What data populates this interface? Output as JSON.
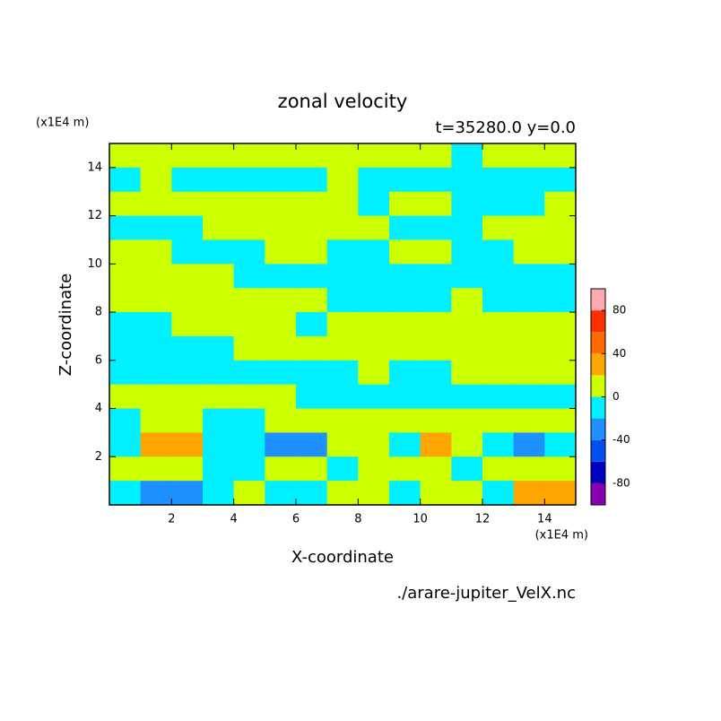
{
  "chart_data": {
    "type": "contour",
    "title": "zonal velocity",
    "subtitle": "t=35280.0 y=0.0",
    "xlabel": "X-coordinate",
    "ylabel": "Z-coordinate",
    "x_unit": "(x1E4 m)",
    "y_unit": "(x1E4 m)",
    "source": "./arare-jupiter_VelX.nc",
    "xlim": [
      0,
      15
    ],
    "ylim": [
      0,
      15
    ],
    "xticks": [
      2,
      4,
      6,
      8,
      10,
      12,
      14
    ],
    "yticks": [
      2,
      4,
      6,
      8,
      10,
      12,
      14
    ],
    "x": [
      0.5,
      1.5,
      2.5,
      3.5,
      4.5,
      5.5,
      6.5,
      7.5,
      8.5,
      9.5,
      10.5,
      11.5,
      12.5,
      13.5,
      14.5
    ],
    "y": [
      14.5,
      13.5,
      12.5,
      11.5,
      10.5,
      9.5,
      8.5,
      7.5,
      6.5,
      5.5,
      4.5,
      3.5,
      2.5,
      1.5,
      0.5
    ],
    "z": [
      [
        10,
        10,
        10,
        10,
        10,
        10,
        10,
        10,
        10,
        10,
        10,
        -10,
        10,
        10,
        10
      ],
      [
        -10,
        10,
        -10,
        -10,
        -10,
        -10,
        -10,
        10,
        -10,
        -10,
        -10,
        -10,
        -10,
        -10,
        -10
      ],
      [
        10,
        10,
        10,
        10,
        10,
        10,
        10,
        10,
        -10,
        10,
        10,
        -10,
        -10,
        -10,
        10
      ],
      [
        -10,
        -10,
        -10,
        10,
        10,
        10,
        10,
        10,
        10,
        -10,
        -10,
        -10,
        10,
        10,
        10
      ],
      [
        10,
        10,
        -10,
        -10,
        -10,
        10,
        10,
        -10,
        -10,
        10,
        10,
        -10,
        -10,
        10,
        10
      ],
      [
        10,
        10,
        10,
        10,
        -10,
        -10,
        -10,
        -10,
        -10,
        -10,
        -10,
        -10,
        -10,
        -10,
        -10
      ],
      [
        10,
        10,
        10,
        10,
        10,
        10,
        10,
        -10,
        -10,
        -10,
        -10,
        10,
        -10,
        -10,
        -10
      ],
      [
        -10,
        -10,
        10,
        10,
        10,
        10,
        -10,
        10,
        10,
        10,
        10,
        10,
        10,
        10,
        10
      ],
      [
        -10,
        -10,
        -10,
        -10,
        10,
        10,
        10,
        10,
        10,
        10,
        10,
        10,
        10,
        10,
        10
      ],
      [
        -10,
        -10,
        -10,
        -10,
        -10,
        -10,
        -10,
        -10,
        10,
        -10,
        -10,
        10,
        10,
        10,
        10
      ],
      [
        10,
        10,
        10,
        10,
        10,
        10,
        -10,
        -10,
        -10,
        -10,
        -10,
        -10,
        -10,
        -10,
        -10
      ],
      [
        -10,
        10,
        10,
        -10,
        -10,
        10,
        10,
        10,
        10,
        10,
        10,
        10,
        10,
        10,
        10
      ],
      [
        -10,
        30,
        30,
        -10,
        -10,
        -30,
        -30,
        10,
        10,
        -10,
        30,
        10,
        -10,
        -30,
        -10
      ],
      [
        10,
        10,
        10,
        -10,
        -10,
        10,
        10,
        -10,
        10,
        10,
        10,
        -10,
        10,
        10,
        10
      ],
      [
        -10,
        -30,
        -30,
        -10,
        10,
        -10,
        -10,
        10,
        10,
        -10,
        10,
        10,
        -10,
        30,
        30
      ]
    ],
    "levels": [
      -100,
      -80,
      -60,
      -40,
      -20,
      0,
      20,
      40,
      60,
      80,
      100
    ],
    "colors": [
      "#8a00b0",
      "#0000c0",
      "#0050f0",
      "#1e90ff",
      "#00f0ff",
      "#ccff00",
      "#ffa500",
      "#ff6a00",
      "#ff3000",
      "#ffaab0"
    ],
    "colorbar_ticks": [
      -80,
      -40,
      0,
      40,
      80
    ]
  }
}
